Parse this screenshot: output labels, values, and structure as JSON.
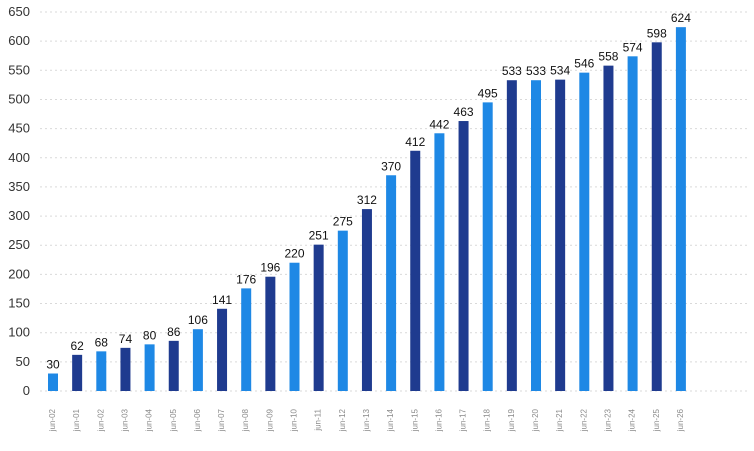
{
  "chart_data": {
    "type": "bar",
    "categories": [
      "jun-02",
      "jun-01",
      "jun-02",
      "jun-03",
      "jun-04",
      "jun-05",
      "jun-06",
      "jun-07",
      "jun-08",
      "jun-09",
      "jun-10",
      "jun-11",
      "jun-12",
      "jun-13",
      "jun-14",
      "jun-15",
      "jun-16",
      "jun-17",
      "jun-18",
      "jun-19",
      "jun-20",
      "jun-21",
      "jun-22",
      "jun-23",
      "jun-24",
      "jun-25",
      "jun-26"
    ],
    "values": [
      30,
      62,
      68,
      74,
      80,
      86,
      106,
      141,
      176,
      196,
      220,
      251,
      275,
      312,
      370,
      412,
      442,
      463,
      495,
      533,
      533,
      534,
      546,
      558,
      574,
      598,
      624
    ],
    "data_labels": [
      "30",
      "62",
      "68",
      "74",
      "80",
      "86",
      "106",
      "141",
      "176",
      "196",
      "220",
      "251",
      "275",
      "312",
      "370",
      "412",
      "442",
      "463",
      "495",
      "533",
      "533",
      "534",
      "546",
      "558",
      "574",
      "598",
      "624"
    ],
    "bar_colors": [
      "#1e88e5",
      "#1f3b8f",
      "#1e88e5",
      "#1f3b8f",
      "#1e88e5",
      "#1f3b8f",
      "#1e88e5",
      "#1f3b8f",
      "#1e88e5",
      "#1f3b8f",
      "#1e88e5",
      "#1f3b8f",
      "#1e88e5",
      "#1f3b8f",
      "#1e88e5",
      "#1f3b8f",
      "#1e88e5",
      "#1f3b8f",
      "#1e88e5",
      "#1f3b8f",
      "#1e88e5",
      "#1f3b8f",
      "#1e88e5",
      "#1f3b8f",
      "#1e88e5",
      "#1f3b8f",
      "#1e88e5"
    ],
    "ylim": [
      0,
      650
    ],
    "yticks": [
      "0",
      "50",
      "100",
      "150",
      "200",
      "250",
      "300",
      "350",
      "400",
      "450",
      "500",
      "550",
      "600",
      "650"
    ],
    "grid": true,
    "legend": "none",
    "title": "",
    "xlabel": "",
    "ylabel": ""
  }
}
